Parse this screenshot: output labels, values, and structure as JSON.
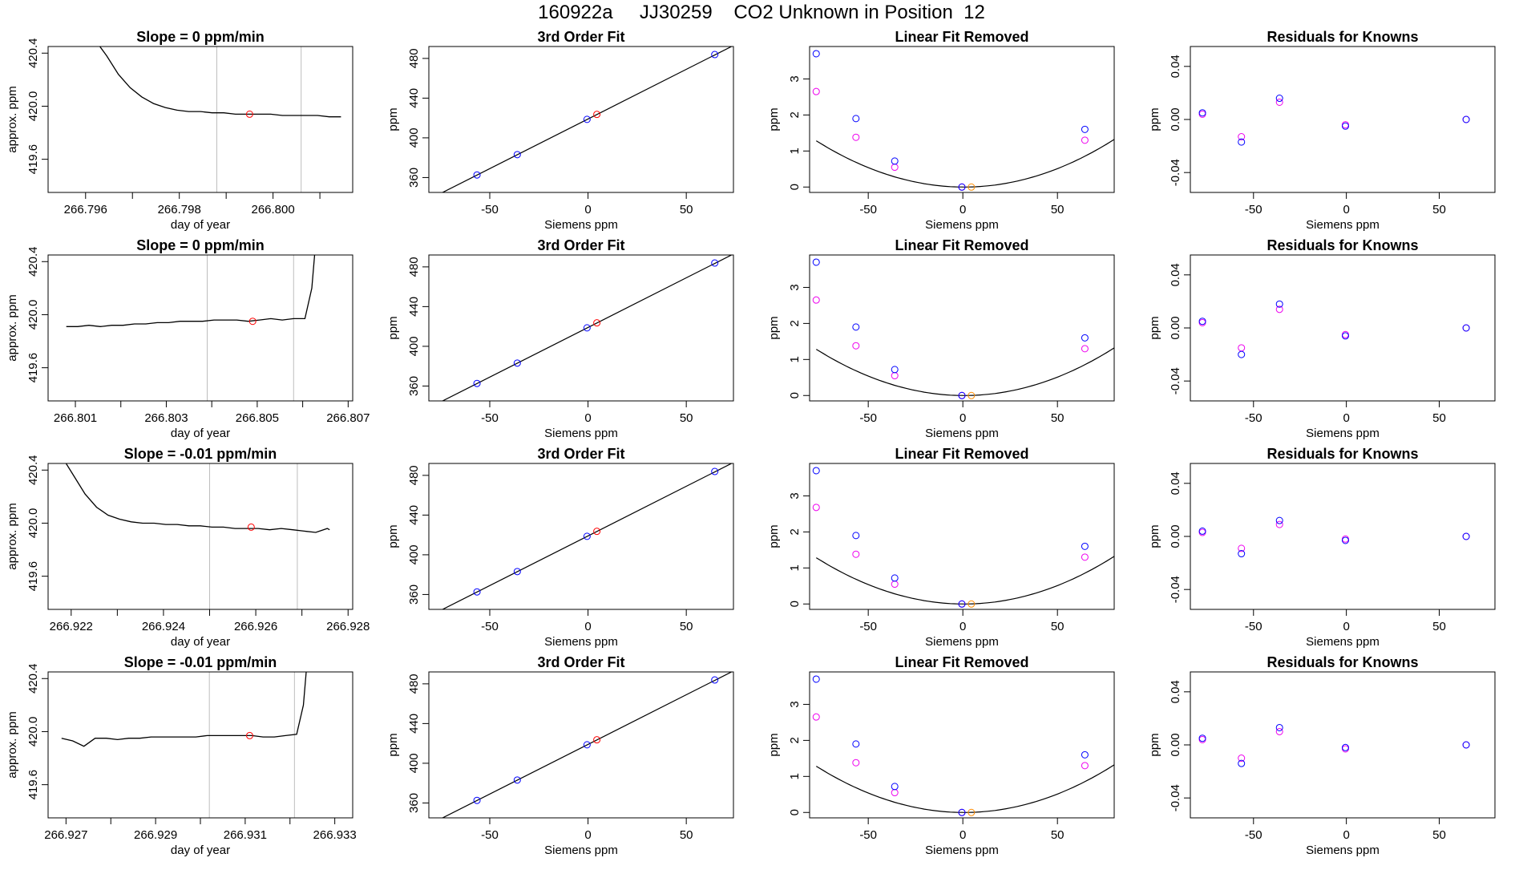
{
  "figure": {
    "title": "160922a     JJ30259    CO2 Unknown in Position  12"
  },
  "colors": {
    "line": "#000000",
    "vline": "#bebebe",
    "unknown_point": "#ff0000",
    "standard_point": "#0000ff",
    "raw_point": "#ee00ee",
    "unknown_fit_point": "#ff8c00"
  },
  "chart_data": [
    {
      "type": "line",
      "row": 0,
      "col": 0,
      "title": "Slope =  0  ppm/min",
      "xlabel": "day of year",
      "ylabel": "approx. ppm",
      "xlim": [
        266.7952,
        266.8017
      ],
      "ylim": [
        419.35,
        420.45
      ],
      "xticks": [
        266.796,
        266.797,
        266.798,
        266.799,
        266.8,
        266.801
      ],
      "xtick_labels": [
        "266.796",
        "",
        "266.798",
        "",
        "266.800",
        ""
      ],
      "yticks": [
        419.6,
        420.0,
        420.4
      ],
      "ytick_labels": [
        "419.6",
        "420.0",
        "420.4"
      ],
      "series": [
        {
          "x": [
            266.7962,
            266.79645,
            266.7967,
            266.79695,
            266.7972,
            266.79745,
            266.7977,
            266.79795,
            266.7982,
            266.79845,
            266.7987,
            266.79895,
            266.7992,
            266.79945,
            266.7997,
            266.79995,
            266.8002,
            266.80045,
            266.8007,
            266.80095,
            266.8012,
            266.80145
          ],
          "y": [
            420.5,
            420.38,
            420.24,
            420.14,
            420.07,
            420.02,
            419.99,
            419.97,
            419.96,
            419.96,
            419.95,
            419.95,
            419.94,
            419.94,
            419.94,
            419.94,
            419.93,
            419.93,
            419.93,
            419.93,
            419.92,
            419.92
          ]
        }
      ],
      "vlines": [
        266.7988,
        266.8006
      ],
      "marker": {
        "x": 266.7995,
        "y": 419.94
      }
    },
    {
      "type": "scatter",
      "row": 0,
      "col": 1,
      "title": "3rd Order Fit",
      "xlabel": "Siemens ppm",
      "ylabel": "ppm",
      "xlim": [
        -81,
        74
      ],
      "ylim": [
        345,
        492
      ],
      "xticks": [
        -50,
        0,
        50
      ],
      "yticks": [
        360,
        400,
        440,
        480
      ],
      "standards": {
        "x": [
          -77.5,
          -56.5,
          -36,
          -0.5,
          64.5
        ],
        "y": [
          341.5,
          362.6,
          383.1,
          418.6,
          483.9
        ]
      },
      "unknown": {
        "x": 4.5,
        "y": 423.6
      },
      "fit_line": {
        "x": [
          -77.5,
          74
        ],
        "y": [
          341.5,
          493.0
        ]
      }
    },
    {
      "type": "scatter",
      "row": 0,
      "col": 2,
      "title": "Linear Fit Removed",
      "xlabel": "Siemens ppm",
      "ylabel": "ppm",
      "xlim": [
        -81,
        80
      ],
      "ylim": [
        -0.15,
        3.9
      ],
      "xticks": [
        -50,
        0,
        50
      ],
      "yticks": [
        0,
        1,
        2,
        3
      ],
      "standards": {
        "x": [
          -77.5,
          -56.5,
          -36,
          -0.5,
          64.5
        ],
        "y": [
          3.7,
          1.9,
          0.72,
          0.0,
          1.6
        ]
      },
      "raw": {
        "x": [
          -77.5,
          -56.5,
          -36,
          -0.5,
          64.5
        ],
        "y": [
          2.65,
          1.38,
          0.55,
          0.0,
          1.3
        ]
      },
      "unknown": {
        "x": 4.5,
        "y": 0.0
      },
      "curve_coeffs": [
        0.00021,
        -0.00029,
        0.0
      ]
    },
    {
      "type": "scatter",
      "row": 0,
      "col": 3,
      "title": "Residuals for Knowns",
      "xlabel": "Siemens ppm",
      "ylabel": "ppm",
      "xlim": [
        -84,
        80
      ],
      "ylim": [
        -0.055,
        0.055
      ],
      "xticks": [
        -50,
        0,
        50
      ],
      "yticks": [
        -0.04,
        0.0,
        0.04
      ],
      "yticks_labels": [
        "-0.04",
        "0.00",
        "0.04"
      ],
      "standards": {
        "x": [
          -77.5,
          -56.5,
          -36,
          -0.5,
          64.5
        ],
        "y": [
          0.005,
          -0.017,
          0.016,
          -0.005,
          0.0
        ]
      },
      "raw": {
        "x": [
          -77.5,
          -56.5,
          -36,
          -0.5,
          64.5
        ],
        "y": [
          0.004,
          -0.013,
          0.013,
          -0.004,
          0.0
        ]
      }
    },
    {
      "type": "line",
      "row": 1,
      "col": 0,
      "title": "Slope =  0  ppm/min",
      "xlabel": "day of year",
      "ylabel": "approx. ppm",
      "xlim": [
        266.8004,
        266.8071
      ],
      "ylim": [
        419.35,
        420.45
      ],
      "xticks": [
        266.801,
        266.802,
        266.803,
        266.804,
        266.805,
        266.806,
        266.807
      ],
      "xtick_labels": [
        "266.801",
        "",
        "266.803",
        "",
        "266.805",
        "",
        "266.807"
      ],
      "yticks": [
        419.6,
        420.0,
        420.4
      ],
      "ytick_labels": [
        "419.6",
        "420.0",
        "420.4"
      ],
      "series": [
        {
          "x": [
            266.8008,
            266.80105,
            266.8013,
            266.80155,
            266.8018,
            266.80205,
            266.8023,
            266.80255,
            266.8028,
            266.80305,
            266.8033,
            266.80355,
            266.8038,
            266.80405,
            266.8043,
            266.80455,
            266.8048,
            266.80505,
            266.8053,
            266.80555,
            266.8058,
            266.80605,
            266.8062,
            266.8063
          ],
          "y": [
            419.91,
            419.91,
            419.92,
            419.91,
            419.92,
            419.92,
            419.93,
            419.93,
            419.94,
            419.94,
            419.95,
            419.95,
            419.95,
            419.96,
            419.96,
            419.96,
            419.95,
            419.96,
            419.97,
            419.96,
            419.97,
            419.97,
            420.2,
            420.6
          ]
        }
      ],
      "vlines": [
        266.8039,
        266.8058
      ],
      "marker": {
        "x": 266.8049,
        "y": 419.95
      }
    },
    {
      "type": "scatter",
      "row": 1,
      "col": 1,
      "title": "3rd Order Fit",
      "xlabel": "Siemens ppm",
      "ylabel": "ppm",
      "xlim": [
        -81,
        74
      ],
      "ylim": [
        345,
        492
      ],
      "xticks": [
        -50,
        0,
        50
      ],
      "yticks": [
        360,
        400,
        440,
        480
      ],
      "standards": {
        "x": [
          -77.5,
          -56.5,
          -36,
          -0.5,
          64.5
        ],
        "y": [
          341.5,
          362.6,
          383.1,
          418.6,
          483.9
        ]
      },
      "unknown": {
        "x": 4.5,
        "y": 423.6
      },
      "fit_line": {
        "x": [
          -77.5,
          74
        ],
        "y": [
          341.5,
          493.0
        ]
      }
    },
    {
      "type": "scatter",
      "row": 1,
      "col": 2,
      "title": "Linear Fit Removed",
      "xlabel": "Siemens ppm",
      "ylabel": "ppm",
      "xlim": [
        -81,
        80
      ],
      "ylim": [
        -0.15,
        3.9
      ],
      "xticks": [
        -50,
        0,
        50
      ],
      "yticks": [
        0,
        1,
        2,
        3
      ],
      "standards": {
        "x": [
          -77.5,
          -56.5,
          -36,
          -0.5,
          64.5
        ],
        "y": [
          3.7,
          1.9,
          0.72,
          0.0,
          1.6
        ]
      },
      "raw": {
        "x": [
          -77.5,
          -56.5,
          -36,
          -0.5,
          64.5
        ],
        "y": [
          2.65,
          1.38,
          0.55,
          0.0,
          1.3
        ]
      },
      "unknown": {
        "x": 4.5,
        "y": 0.0
      },
      "curve_coeffs": [
        0.00021,
        -0.00029,
        0.0
      ]
    },
    {
      "type": "scatter",
      "row": 1,
      "col": 3,
      "title": "Residuals for Knowns",
      "xlabel": "Siemens ppm",
      "ylabel": "ppm",
      "xlim": [
        -84,
        80
      ],
      "ylim": [
        -0.055,
        0.055
      ],
      "xticks": [
        -50,
        0,
        50
      ],
      "yticks": [
        -0.04,
        0.0,
        0.04
      ],
      "yticks_labels": [
        "-0.04",
        "0.00",
        "0.04"
      ],
      "standards": {
        "x": [
          -77.5,
          -56.5,
          -36,
          -0.5,
          64.5
        ],
        "y": [
          0.005,
          -0.02,
          0.018,
          -0.006,
          0.0
        ]
      },
      "raw": {
        "x": [
          -77.5,
          -56.5,
          -36,
          -0.5,
          64.5
        ],
        "y": [
          0.004,
          -0.015,
          0.014,
          -0.005,
          0.0
        ]
      }
    },
    {
      "type": "line",
      "row": 2,
      "col": 0,
      "title": "Slope =  -0.01  ppm/min",
      "xlabel": "day of year",
      "ylabel": "approx. ppm",
      "xlim": [
        266.9215,
        266.9281
      ],
      "ylim": [
        419.35,
        420.45
      ],
      "xticks": [
        266.922,
        266.923,
        266.924,
        266.925,
        266.926,
        266.927,
        266.928
      ],
      "xtick_labels": [
        "266.922",
        "",
        "266.924",
        "",
        "266.926",
        "",
        "266.928"
      ],
      "yticks": [
        419.6,
        420.0,
        420.4
      ],
      "ytick_labels": [
        "419.6",
        "420.0",
        "420.4"
      ],
      "series": [
        {
          "x": [
            266.9218,
            266.92205,
            266.9223,
            266.92255,
            266.9228,
            266.92305,
            266.9233,
            266.92355,
            266.9238,
            266.92405,
            266.9243,
            266.92455,
            266.9248,
            266.92505,
            266.9253,
            266.92555,
            266.9258,
            266.92605,
            266.9263,
            266.92655,
            266.9268,
            266.92705,
            266.9273,
            266.92755,
            266.9276
          ],
          "y": [
            420.5,
            420.36,
            420.22,
            420.12,
            420.06,
            420.03,
            420.01,
            420.0,
            420.0,
            419.99,
            419.99,
            419.98,
            419.98,
            419.97,
            419.97,
            419.96,
            419.96,
            419.96,
            419.95,
            419.96,
            419.95,
            419.94,
            419.93,
            419.96,
            419.95
          ]
        }
      ],
      "vlines": [
        266.925,
        266.9269
      ],
      "marker": {
        "x": 266.9259,
        "y": 419.97
      }
    },
    {
      "type": "scatter",
      "row": 2,
      "col": 1,
      "title": "3rd Order Fit",
      "xlabel": "Siemens ppm",
      "ylabel": "ppm",
      "xlim": [
        -81,
        74
      ],
      "ylim": [
        345,
        492
      ],
      "xticks": [
        -50,
        0,
        50
      ],
      "yticks": [
        360,
        400,
        440,
        480
      ],
      "standards": {
        "x": [
          -77.5,
          -56.5,
          -36,
          -0.5,
          64.5
        ],
        "y": [
          341.5,
          362.6,
          383.1,
          418.6,
          483.9
        ]
      },
      "unknown": {
        "x": 4.5,
        "y": 423.6
      },
      "fit_line": {
        "x": [
          -77.5,
          74
        ],
        "y": [
          341.5,
          493.0
        ]
      }
    },
    {
      "type": "scatter",
      "row": 2,
      "col": 2,
      "title": "Linear Fit Removed",
      "xlabel": "Siemens ppm",
      "ylabel": "ppm",
      "xlim": [
        -81,
        80
      ],
      "ylim": [
        -0.15,
        3.9
      ],
      "xticks": [
        -50,
        0,
        50
      ],
      "yticks": [
        0,
        1,
        2,
        3
      ],
      "standards": {
        "x": [
          -77.5,
          -56.5,
          -36,
          -0.5,
          64.5
        ],
        "y": [
          3.7,
          1.9,
          0.72,
          0.0,
          1.6
        ]
      },
      "raw": {
        "x": [
          -77.5,
          -56.5,
          -36,
          -0.5,
          64.5
        ],
        "y": [
          2.68,
          1.38,
          0.55,
          0.0,
          1.3
        ]
      },
      "unknown": {
        "x": 4.5,
        "y": 0.0
      },
      "curve_coeffs": [
        0.00021,
        -0.00029,
        0.0
      ]
    },
    {
      "type": "scatter",
      "row": 2,
      "col": 3,
      "title": "Residuals for Knowns",
      "xlabel": "Siemens ppm",
      "ylabel": "ppm",
      "xlim": [
        -84,
        80
      ],
      "ylim": [
        -0.055,
        0.055
      ],
      "xticks": [
        -50,
        0,
        50
      ],
      "yticks": [
        -0.04,
        0.0,
        0.04
      ],
      "yticks_labels": [
        "-0.04",
        "0.00",
        "0.04"
      ],
      "standards": {
        "x": [
          -77.5,
          -56.5,
          -36,
          -0.5,
          64.5
        ],
        "y": [
          0.004,
          -0.013,
          0.012,
          -0.003,
          0.0
        ]
      },
      "raw": {
        "x": [
          -77.5,
          -56.5,
          -36,
          -0.5,
          64.5
        ],
        "y": [
          0.003,
          -0.009,
          0.009,
          -0.002,
          0.0
        ]
      }
    },
    {
      "type": "line",
      "row": 3,
      "col": 0,
      "title": "Slope =  -0.01  ppm/min",
      "xlabel": "day of year",
      "ylabel": "approx. ppm",
      "xlim": [
        266.9266,
        266.9334
      ],
      "ylim": [
        419.35,
        420.45
      ],
      "xticks": [
        266.927,
        266.928,
        266.929,
        266.93,
        266.931,
        266.932,
        266.933
      ],
      "xtick_labels": [
        "266.927",
        "",
        "266.929",
        "",
        "266.931",
        "",
        "266.933"
      ],
      "yticks": [
        419.6,
        420.0,
        420.4
      ],
      "ytick_labels": [
        "419.6",
        "420.0",
        "420.4"
      ],
      "series": [
        {
          "x": [
            266.9269,
            266.92715,
            266.9274,
            266.92765,
            266.9279,
            266.92815,
            266.9284,
            266.92865,
            266.9289,
            266.92915,
            266.9294,
            266.92965,
            266.9299,
            266.93015,
            266.9304,
            266.93065,
            266.9309,
            266.93115,
            266.9314,
            266.93165,
            266.9319,
            266.93215,
            266.9323,
            266.9324
          ],
          "y": [
            419.95,
            419.93,
            419.89,
            419.95,
            419.95,
            419.94,
            419.95,
            419.95,
            419.96,
            419.96,
            419.96,
            419.96,
            419.96,
            419.97,
            419.97,
            419.97,
            419.97,
            419.97,
            419.96,
            419.96,
            419.97,
            419.98,
            420.2,
            420.6
          ]
        }
      ],
      "vlines": [
        266.9302,
        266.9321
      ],
      "marker": {
        "x": 266.9311,
        "y": 419.97
      }
    },
    {
      "type": "scatter",
      "row": 3,
      "col": 1,
      "title": "3rd Order Fit",
      "xlabel": "Siemens ppm",
      "ylabel": "ppm",
      "xlim": [
        -81,
        74
      ],
      "ylim": [
        345,
        492
      ],
      "xticks": [
        -50,
        0,
        50
      ],
      "yticks": [
        360,
        400,
        440,
        480
      ],
      "standards": {
        "x": [
          -77.5,
          -56.5,
          -36,
          -0.5,
          64.5
        ],
        "y": [
          341.5,
          362.6,
          383.1,
          418.6,
          483.9
        ]
      },
      "unknown": {
        "x": 4.5,
        "y": 423.6
      },
      "fit_line": {
        "x": [
          -77.5,
          74
        ],
        "y": [
          341.5,
          493.0
        ]
      }
    },
    {
      "type": "scatter",
      "row": 3,
      "col": 2,
      "title": "Linear Fit Removed",
      "xlabel": "Siemens ppm",
      "ylabel": "ppm",
      "xlim": [
        -81,
        80
      ],
      "ylim": [
        -0.15,
        3.9
      ],
      "xticks": [
        -50,
        0,
        50
      ],
      "yticks": [
        0,
        1,
        2,
        3
      ],
      "standards": {
        "x": [
          -77.5,
          -56.5,
          -36,
          -0.5,
          64.5
        ],
        "y": [
          3.7,
          1.9,
          0.72,
          0.0,
          1.6
        ]
      },
      "raw": {
        "x": [
          -77.5,
          -56.5,
          -36,
          -0.5,
          64.5
        ],
        "y": [
          2.65,
          1.38,
          0.55,
          0.0,
          1.3
        ]
      },
      "unknown": {
        "x": 4.5,
        "y": 0.0
      },
      "curve_coeffs": [
        0.00021,
        -0.00029,
        0.0
      ]
    },
    {
      "type": "scatter",
      "row": 3,
      "col": 3,
      "title": "Residuals for Knowns",
      "xlabel": "Siemens ppm",
      "ylabel": "ppm",
      "xlim": [
        -84,
        80
      ],
      "ylim": [
        -0.055,
        0.055
      ],
      "xticks": [
        -50,
        0,
        50
      ],
      "yticks": [
        -0.04,
        0.0,
        0.04
      ],
      "yticks_labels": [
        "-0.04",
        "0.00",
        "0.04"
      ],
      "standards": {
        "x": [
          -77.5,
          -56.5,
          -36,
          -0.5,
          64.5
        ],
        "y": [
          0.005,
          -0.014,
          0.013,
          -0.002,
          0.0
        ]
      },
      "raw": {
        "x": [
          -77.5,
          -56.5,
          -36,
          -0.5,
          64.5
        ],
        "y": [
          0.004,
          -0.01,
          0.01,
          -0.003,
          0.0
        ]
      }
    }
  ]
}
